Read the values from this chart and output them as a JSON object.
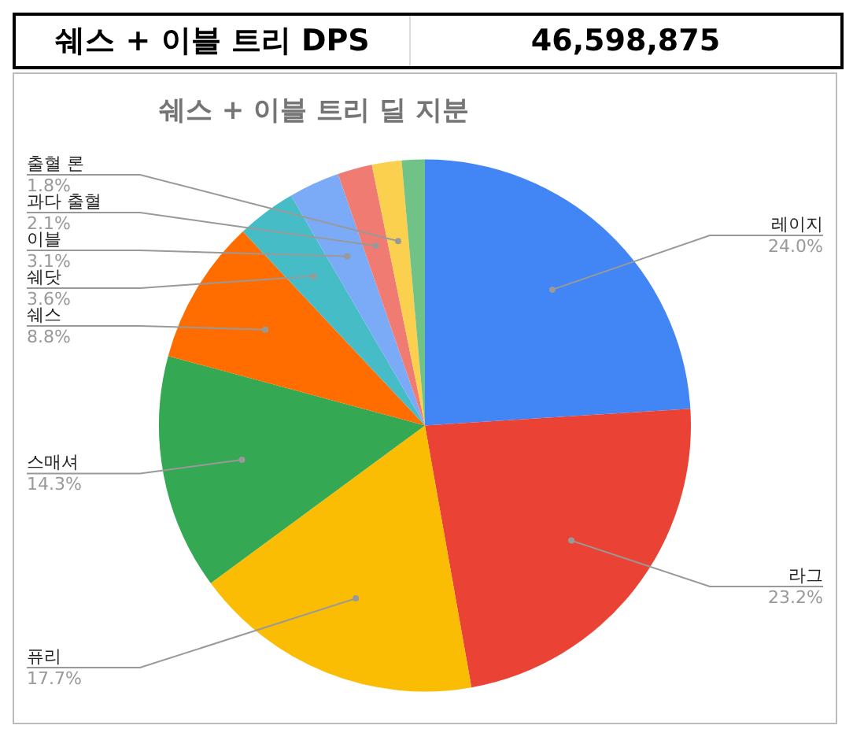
{
  "chart_data": {
    "type": "pie",
    "title": "쉐스 + 이블 트리 딜 지분",
    "annotations": [
      "쉐스 + 이블 트리 DPS",
      "46,598,875"
    ],
    "categories": [
      "레이지",
      "라그",
      "퓨리",
      "스매셔",
      "쉐스",
      "쉐닷",
      "이블",
      "과다 출혈",
      "출혈 론",
      null
    ],
    "values": [
      24.0,
      23.2,
      17.7,
      14.3,
      8.8,
      3.6,
      3.1,
      2.1,
      1.8,
      1.4
    ],
    "value_labels": [
      "24.0%",
      "23.2%",
      "17.7%",
      "14.3%",
      "8.8%",
      "3.6%",
      "3.1%",
      "2.1%",
      "1.8%",
      null
    ],
    "colors": [
      "#4285f4",
      "#ea4335",
      "#fbbc04",
      "#34a853",
      "#ff6d01",
      "#46bdc6",
      "#7baaf7",
      "#f07b72",
      "#fcd04f",
      "#71c287"
    ],
    "legend": false
  }
}
